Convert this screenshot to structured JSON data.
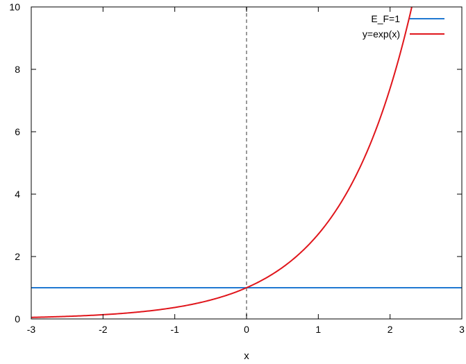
{
  "chart_data": {
    "type": "line",
    "title": "",
    "xlabel": "x",
    "ylabel": "",
    "xlim": [
      -3,
      3
    ],
    "ylim": [
      0,
      10
    ],
    "xticks": [
      -3,
      -2,
      -1,
      0,
      1,
      2,
      3
    ],
    "yticks": [
      0,
      2,
      4,
      6,
      8,
      10
    ],
    "grid": false,
    "legend_position": "top-right",
    "reference_line": {
      "x": 0,
      "style": "dashed",
      "color": "#999999"
    },
    "series": [
      {
        "name": "E_F=1",
        "function": "constant",
        "y": 1,
        "color": "#1f78d1"
      },
      {
        "name": "y=exp(x)",
        "function": "exp",
        "color": "#e0151b"
      }
    ]
  }
}
